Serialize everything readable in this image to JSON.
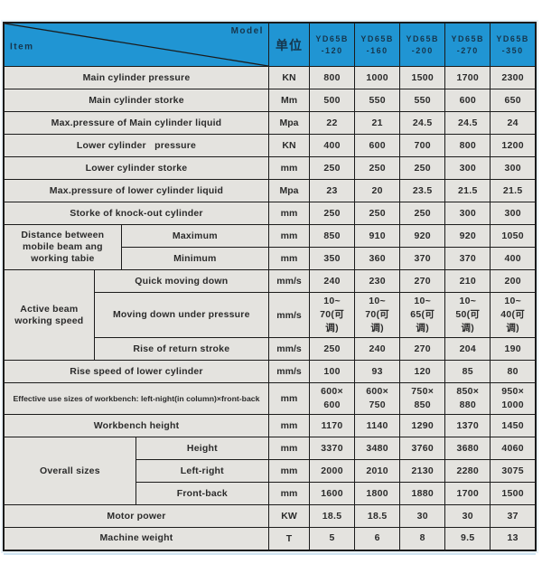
{
  "colors": {
    "header_bg": "#2095d3",
    "header_text": "#16364d",
    "row_bg": "#e4e3df",
    "grid": "#1b1b1b",
    "cell_text": "#2b2b2b",
    "frame_glow": "#cfe3f1"
  },
  "table": {
    "corner": {
      "model_label": "Model",
      "item_label": "Item"
    },
    "unit_header": "单位",
    "models": [
      "YD65B\n-120",
      "YD65B\n-160",
      "YD65B\n-200",
      "YD65B\n-270",
      "YD65B\n-350"
    ],
    "rows": [
      {
        "label": "Main cylinder pressure",
        "unit": "KN",
        "values": [
          "800",
          "1000",
          "1500",
          "1700",
          "2300"
        ]
      },
      {
        "label": "Main cylinder storke",
        "unit": "Mm",
        "values": [
          "500",
          "550",
          "550",
          "600",
          "650"
        ]
      },
      {
        "label": "Max.pressure of Main cylinder liquid",
        "unit": "Mpa",
        "values": [
          "22",
          "21",
          "24.5",
          "24.5",
          "24"
        ]
      },
      {
        "label": "Lower cylinder   pressure",
        "unit": "KN",
        "values": [
          "400",
          "600",
          "700",
          "800",
          "1200"
        ]
      },
      {
        "label": "Lower cylinder storke",
        "unit": "mm",
        "values": [
          "250",
          "250",
          "250",
          "300",
          "300"
        ]
      },
      {
        "label": "Max.pressure of lower cylinder liquid",
        "unit": "Mpa",
        "values": [
          "23",
          "20",
          "23.5",
          "21.5",
          "21.5"
        ]
      },
      {
        "label": "Storke of knock-out cylinder",
        "unit": "mm",
        "values": [
          "250",
          "250",
          "250",
          "300",
          "300"
        ]
      },
      {
        "group": {
          "label": "Distance between mobile beam ang working tabie",
          "rows": 2,
          "cols": 2
        },
        "label": "Maximum",
        "unit": "mm",
        "values": [
          "850",
          "910",
          "920",
          "920",
          "1050"
        ]
      },
      {
        "label": "Minimum",
        "unit": "mm",
        "values": [
          "350",
          "360",
          "370",
          "370",
          "400"
        ]
      },
      {
        "group": {
          "label": "Active beam working speed",
          "rows": 3,
          "cols": 1
        },
        "label": "Quick moving down",
        "unit": "mm/s",
        "values": [
          "240",
          "230",
          "270",
          "210",
          "200"
        ]
      },
      {
        "label": "Moving down under pressure",
        "unit": "mm/s",
        "values": [
          "10~\n70(可\n调)",
          "10~\n70(可\n调)",
          "10~\n65(可\n调)",
          "10~\n50(可\n调)",
          "10~\n40(可\n调)"
        ]
      },
      {
        "label": "Rise of return stroke",
        "unit": "mm/s",
        "values": [
          "250",
          "240",
          "270",
          "204",
          "190"
        ]
      },
      {
        "label": "Rise speed of lower cylinder",
        "unit": "mm/s",
        "values": [
          "100",
          "93",
          "120",
          "85",
          "80"
        ]
      },
      {
        "label": "Effective use sizes of workbench: left-night(in column)×front-back",
        "unit": "mm",
        "small": true,
        "values": [
          "600×\n600",
          "600×\n750",
          "750×\n850",
          "850×\n880",
          "950×\n1000"
        ]
      },
      {
        "label": "Workbench height",
        "unit": "mm",
        "values": [
          "1170",
          "1140",
          "1290",
          "1370",
          "1450"
        ]
      },
      {
        "group": {
          "label": "Overall sizes",
          "rows": 3,
          "cols": 3
        },
        "label": "Height",
        "unit": "mm",
        "values": [
          "3370",
          "3480",
          "3760",
          "3680",
          "4060"
        ]
      },
      {
        "label": "Left-right",
        "unit": "mm",
        "values": [
          "2000",
          "2010",
          "2130",
          "2280",
          "3075"
        ]
      },
      {
        "label": "Front-back",
        "unit": "mm",
        "values": [
          "1600",
          "1800",
          "1880",
          "1700",
          "1500"
        ]
      },
      {
        "label": "Motor power",
        "unit": "KW",
        "values": [
          "18.5",
          "18.5",
          "30",
          "30",
          "37"
        ]
      },
      {
        "label": "Machine weight",
        "unit": "T",
        "values": [
          "5",
          "6",
          "8",
          "9.5",
          "13"
        ]
      }
    ]
  }
}
